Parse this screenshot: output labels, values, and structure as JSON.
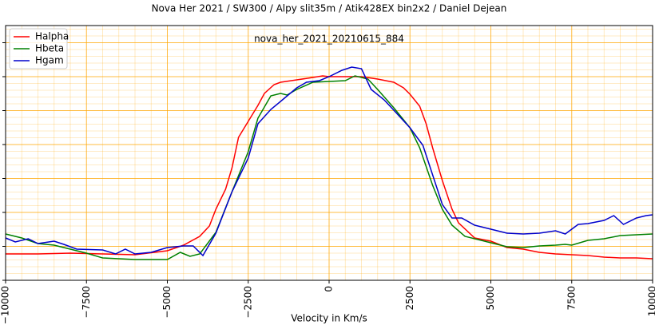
{
  "chart_data": {
    "type": "line",
    "title": "Nova Her 2021 / SW300 / Alpy slit35m / Atik428EX bin2x2 / Daniel Dejean",
    "annotation": "nova_her_2021_20210615_884",
    "x_label": "Velocity in Km/s",
    "xlim": [
      -10000,
      10000
    ],
    "xticks": [
      {
        "value": -10000,
        "label": "−10000"
      },
      {
        "value": -7500,
        "label": "−7500"
      },
      {
        "value": -5000,
        "label": "−5000"
      },
      {
        "value": -2500,
        "label": "−2500"
      },
      0,
      2500,
      5000,
      7500,
      10000
    ],
    "ylim": [
      0,
      319
    ],
    "yticks": [
      0,
      42.5,
      85,
      127.5,
      170,
      212.5,
      255,
      297.5
    ],
    "grid": true,
    "legend": "upper left",
    "series": [
      {
        "name": "Halpha",
        "color": "#ff0000",
        "x": [
          -10000,
          -9000,
          -8000,
          -7000,
          -6000,
          -5000,
          -4500,
          -4000,
          -3700,
          -3500,
          -3200,
          -3000,
          -2800,
          -2500,
          -2200,
          -2000,
          -1700,
          -1500,
          -1000,
          -500,
          -200,
          0,
          500,
          1000,
          1500,
          2000,
          2300,
          2500,
          2800,
          3000,
          3200,
          3500,
          3800,
          4000,
          4500,
          5000,
          5500,
          6000,
          6500,
          7000,
          7500,
          8000,
          8500,
          9000,
          9500,
          10000
        ],
        "values": [
          33,
          33,
          34,
          33,
          32,
          37,
          44,
          55,
          68,
          89,
          114,
          141,
          179,
          199,
          219,
          234,
          245,
          248,
          251,
          254,
          256,
          255,
          255,
          255,
          252,
          248,
          241,
          233,
          218,
          196,
          166,
          125,
          89,
          72,
          53,
          49,
          41,
          39,
          35,
          33,
          32,
          31,
          29,
          28,
          28,
          27
        ]
      },
      {
        "name": "Hbeta",
        "color": "#008000",
        "x": [
          -10000,
          -9500,
          -9000,
          -8500,
          -8000,
          -7500,
          -7000,
          -6500,
          -6000,
          -5500,
          -5000,
          -4600,
          -4300,
          -4000,
          -3500,
          -3000,
          -2500,
          -2200,
          -1800,
          -1500,
          -1300,
          -1000,
          -500,
          0,
          500,
          800,
          1200,
          1500,
          2000,
          2500,
          2800,
          3200,
          3500,
          3800,
          4200,
          5000,
          5500,
          6000,
          6500,
          7000,
          7300,
          7500,
          8000,
          8500,
          9000,
          9500,
          10000
        ],
        "values": [
          58,
          53,
          46,
          44,
          39,
          34,
          28,
          27,
          26,
          26,
          26,
          35,
          30,
          33,
          60,
          111,
          161,
          203,
          231,
          234,
          232,
          239,
          248,
          249,
          250,
          256,
          252,
          239,
          216,
          191,
          166,
          119,
          89,
          69,
          55,
          47,
          42,
          41,
          43,
          44,
          45,
          44,
          50,
          52,
          56,
          57,
          58
        ]
      },
      {
        "name": "Hgam",
        "color": "#0000cc",
        "x": [
          -10000,
          -9700,
          -9300,
          -9000,
          -8500,
          -8200,
          -7800,
          -7000,
          -6600,
          -6300,
          -6000,
          -5500,
          -5000,
          -4500,
          -4200,
          -3900,
          -3500,
          -3000,
          -2500,
          -2200,
          -1800,
          -1500,
          -1000,
          -700,
          -300,
          0,
          400,
          700,
          1000,
          1300,
          1700,
          2000,
          2500,
          2900,
          3500,
          3800,
          4100,
          4500,
          5000,
          5500,
          6000,
          6500,
          7000,
          7300,
          7700,
          8000,
          8500,
          8800,
          9100,
          9500,
          9800,
          10000
        ],
        "values": [
          53,
          48,
          52,
          46,
          49,
          45,
          39,
          38,
          33,
          39,
          33,
          35,
          41,
          43,
          43,
          31,
          59,
          111,
          153,
          196,
          214,
          224,
          241,
          248,
          250,
          255,
          263,
          267,
          265,
          239,
          226,
          213,
          191,
          169,
          95,
          78,
          78,
          69,
          64,
          59,
          58,
          59,
          62,
          58,
          70,
          71,
          75,
          81,
          70,
          78,
          81,
          82
        ]
      }
    ]
  }
}
